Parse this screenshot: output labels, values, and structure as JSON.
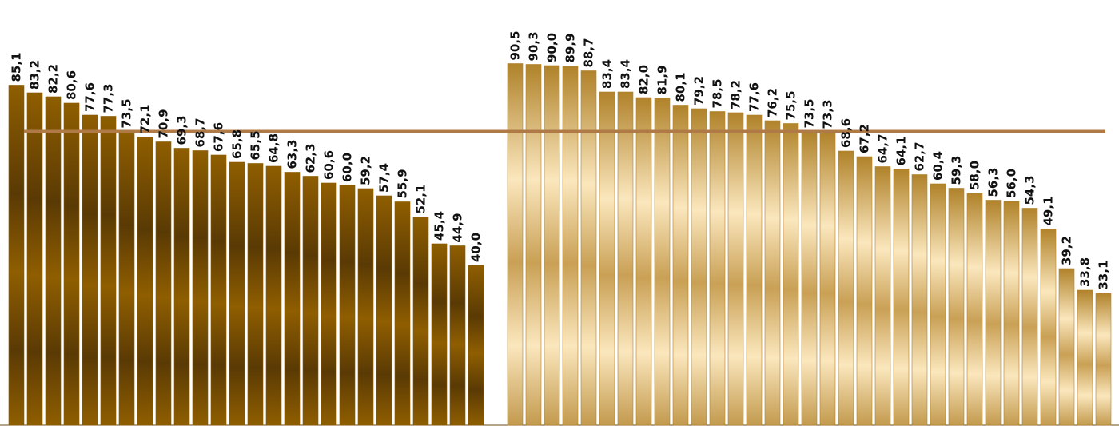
{
  "chart_data": {
    "type": "bar",
    "decimal_separator": ",",
    "ylim": [
      0,
      100
    ],
    "grid": false,
    "reference_line": {
      "value": 73.5,
      "color": "#b07a47"
    },
    "series": [
      {
        "color_style": "dark-bronze",
        "colors": {
          "edge": "#8a5a00",
          "mid": "#5a3a04"
        },
        "values": [
          85.1,
          83.2,
          82.2,
          80.6,
          77.6,
          77.3,
          73.5,
          72.1,
          70.9,
          69.3,
          68.7,
          67.6,
          65.8,
          65.5,
          64.8,
          63.3,
          62.3,
          60.6,
          60.0,
          59.2,
          57.4,
          55.9,
          52.1,
          45.4,
          44.9,
          40.0
        ]
      },
      {
        "color_style": "light-gold",
        "colors": {
          "edge": "#b0822a",
          "mid": "#fbe7bd"
        },
        "values": [
          90.5,
          90.3,
          90.0,
          89.9,
          88.7,
          83.4,
          83.4,
          82.0,
          81.9,
          80.1,
          79.2,
          78.5,
          78.2,
          77.6,
          76.2,
          75.5,
          73.5,
          73.3,
          68.6,
          67.2,
          64.7,
          64.1,
          62.7,
          60.4,
          59.3,
          58.0,
          56.3,
          56.0,
          54.3,
          49.1,
          39.2,
          33.8,
          33.1
        ]
      }
    ]
  }
}
